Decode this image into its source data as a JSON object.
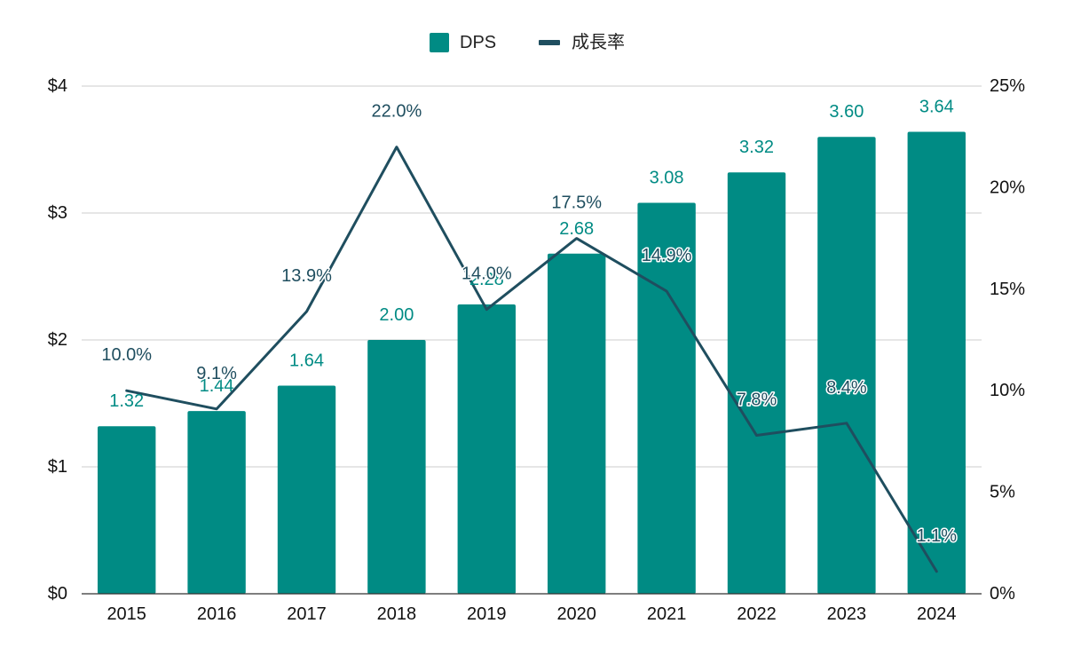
{
  "chart_data": {
    "type": "bar",
    "categories": [
      "2015",
      "2016",
      "2017",
      "2018",
      "2019",
      "2020",
      "2021",
      "2022",
      "2023",
      "2024"
    ],
    "series": [
      {
        "name": "DPS",
        "type": "bar",
        "axis": "left",
        "color": "#008b84",
        "values": [
          1.32,
          1.44,
          1.64,
          2.0,
          2.28,
          2.68,
          3.08,
          3.32,
          3.6,
          3.64
        ],
        "labels": [
          "1.32",
          "1.44",
          "1.64",
          "2.00",
          "2.28",
          "2.68",
          "3.08",
          "3.32",
          "3.60",
          "3.64"
        ]
      },
      {
        "name": "成長率",
        "type": "line",
        "axis": "right",
        "color": "#1f4e5f",
        "values": [
          10.0,
          9.1,
          13.9,
          22.0,
          14.0,
          17.5,
          14.9,
          7.8,
          8.4,
          1.1
        ],
        "labels": [
          "10.0%",
          "9.1%",
          "13.9%",
          "22.0%",
          "14.0%",
          "17.5%",
          "14.9%",
          "7.8%",
          "8.4%",
          "1.1%"
        ]
      }
    ],
    "y_left": {
      "min": 0,
      "max": 4,
      "ticks": [
        0,
        1,
        2,
        3,
        4
      ],
      "tick_labels": [
        "$0",
        "$1",
        "$2",
        "$3",
        "$4"
      ]
    },
    "y_right": {
      "min": 0,
      "max": 25,
      "ticks": [
        0,
        5,
        10,
        15,
        20,
        25
      ],
      "tick_labels": [
        "0%",
        "5%",
        "10%",
        "15%",
        "20%",
        "25%"
      ]
    },
    "grid": true,
    "legend_position": "top-center",
    "title": "",
    "xlabel": "",
    "ylabel": ""
  }
}
